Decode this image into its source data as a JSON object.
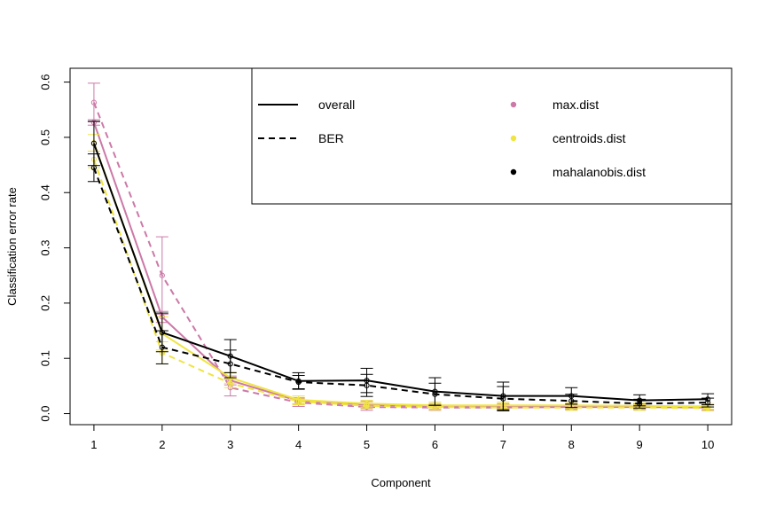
{
  "chart_data": {
    "type": "line",
    "title": "",
    "xlabel": "Component",
    "ylabel": "Classification error rate",
    "x": [
      1,
      2,
      3,
      4,
      5,
      6,
      7,
      8,
      9,
      10
    ],
    "xlim": [
      0.65,
      10.35
    ],
    "ylim": [
      -0.02,
      0.625
    ],
    "y_ticks": [
      "0.0",
      "0.1",
      "0.2",
      "0.3",
      "0.4",
      "0.5",
      "0.6"
    ],
    "y_tick_values": [
      0,
      0.1,
      0.2,
      0.3,
      0.4,
      0.5,
      0.6
    ],
    "x_ticks": [
      "1",
      "2",
      "3",
      "4",
      "5",
      "6",
      "7",
      "8",
      "9",
      "10"
    ],
    "grid": false,
    "legend_position": "top-right",
    "legend": {
      "measures": [
        {
          "label": "overall",
          "style": "solid"
        },
        {
          "label": "BER",
          "style": "dashed"
        }
      ],
      "distances": [
        {
          "label": "max.dist",
          "color": "#CC79A7"
        },
        {
          "label": "centroids.dist",
          "color": "#F0E442"
        },
        {
          "label": "mahalanobis.dist",
          "color": "#000000"
        }
      ]
    },
    "series": [
      {
        "distance": "max.dist",
        "measure": "overall",
        "color": "#CC79A7",
        "style": "solid",
        "values": [
          0.527,
          0.175,
          0.06,
          0.023,
          0.016,
          0.013,
          0.013,
          0.013,
          0.013,
          0.012
        ],
        "err": [
          0.005,
          0.01,
          0.008,
          0.006,
          0.006,
          0.005,
          0.005,
          0.005,
          0.005,
          0.004
        ]
      },
      {
        "distance": "max.dist",
        "measure": "BER",
        "color": "#CC79A7",
        "style": "dashed",
        "values": [
          0.563,
          0.25,
          0.047,
          0.02,
          0.012,
          0.011,
          0.011,
          0.012,
          0.012,
          0.011
        ],
        "err": [
          0.035,
          0.07,
          0.015,
          0.007,
          0.006,
          0.005,
          0.005,
          0.005,
          0.005,
          0.005
        ]
      },
      {
        "distance": "centroids.dist",
        "measure": "overall",
        "color": "#F0E442",
        "style": "solid",
        "values": [
          0.49,
          0.145,
          0.065,
          0.025,
          0.018,
          0.015,
          0.015,
          0.015,
          0.014,
          0.013
        ],
        "err": [
          0.015,
          0.03,
          0.01,
          0.007,
          0.006,
          0.006,
          0.006,
          0.006,
          0.005,
          0.005
        ]
      },
      {
        "distance": "centroids.dist",
        "measure": "BER",
        "color": "#F0E442",
        "style": "dashed",
        "values": [
          0.46,
          0.11,
          0.055,
          0.022,
          0.014,
          0.012,
          0.011,
          0.011,
          0.011,
          0.01
        ],
        "err": [
          0.015,
          0.02,
          0.008,
          0.006,
          0.005,
          0.005,
          0.005,
          0.005,
          0.005,
          0.005
        ]
      },
      {
        "distance": "mahalanobis.dist",
        "measure": "overall",
        "color": "#000000",
        "style": "solid",
        "values": [
          0.489,
          0.147,
          0.104,
          0.059,
          0.06,
          0.04,
          0.032,
          0.032,
          0.024,
          0.026
        ],
        "err": [
          0.04,
          0.035,
          0.03,
          0.015,
          0.022,
          0.025,
          0.025,
          0.015,
          0.01,
          0.01
        ]
      },
      {
        "distance": "mahalanobis.dist",
        "measure": "BER",
        "color": "#000000",
        "style": "dashed",
        "values": [
          0.445,
          0.12,
          0.09,
          0.057,
          0.051,
          0.035,
          0.027,
          0.023,
          0.018,
          0.02
        ],
        "err": [
          0.025,
          0.03,
          0.025,
          0.012,
          0.02,
          0.02,
          0.022,
          0.012,
          0.008,
          0.008
        ]
      }
    ]
  }
}
